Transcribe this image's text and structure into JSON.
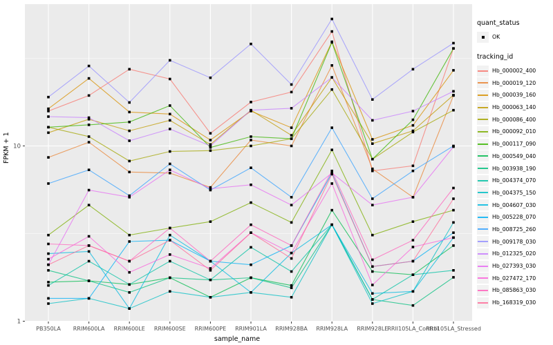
{
  "figure": {
    "background": "#ffffff",
    "panel_background": "#EBEBEB",
    "grid_color": "#FFFFFF",
    "axis_text_color": "#4D4D4D",
    "point_color": "#000000"
  },
  "legend": {
    "quant_status_title": "quant_status",
    "quant_status_items": [
      {
        "label": "OK"
      }
    ],
    "tracking_title": "tracking_id"
  },
  "chart_data": {
    "type": "line",
    "title": "",
    "xlabel": "sample_name",
    "ylabel": "FPKM + 1",
    "y_scale": "log10",
    "y_ticks": [
      {
        "value": 10,
        "label": "10"
      },
      {
        "value": 1,
        "label": "1"
      }
    ],
    "y_minor_ticks": [
      3.162,
      31.62
    ],
    "ylim": [
      1,
      63
    ],
    "grid": true,
    "legend_position": "right",
    "quant_status": "OK",
    "x_categories": [
      "PB350LA",
      "RRIM600LA",
      "RRIM600LE",
      "RRIM600SE",
      "RRIM600PE",
      "RRIM901LA",
      "RRIM928BA",
      "RRIM928LA",
      "RRIM928LE",
      "RRII105LA_Control",
      "RRII105LA_Stressed"
    ],
    "series": [
      {
        "name": "Hb_000002_400",
        "color": "#F8766D",
        "values": [
          15.8,
          19.4,
          27.4,
          24.1,
          11.8,
          17.8,
          20.3,
          45.0,
          7.2,
          7.7,
          36.0
        ]
      },
      {
        "name": "Hb_000019_120",
        "color": "#EA8331",
        "values": [
          8.6,
          10.5,
          7.1,
          7.0,
          5.8,
          10.8,
          10.0,
          28.8,
          7.4,
          5.1,
          19.4
        ]
      },
      {
        "name": "Hb_000039_160",
        "color": "#D89000",
        "values": [
          16.3,
          24.3,
          15.6,
          15.2,
          10.8,
          15.8,
          12.7,
          39.3,
          10.9,
          13.1,
          27.0
        ]
      },
      {
        "name": "Hb_000063_140",
        "color": "#C09B00",
        "values": [
          11.9,
          14.2,
          12.2,
          14.0,
          10.2,
          16.0,
          11.5,
          24.6,
          10.3,
          12.2,
          19.5
        ]
      },
      {
        "name": "Hb_000086_400",
        "color": "#A3A500",
        "values": [
          12.8,
          11.3,
          8.2,
          9.3,
          9.4,
          10.0,
          11.0,
          21.0,
          8.4,
          12.0,
          16.0
        ]
      },
      {
        "name": "Hb_000092_010",
        "color": "#7CAE00",
        "values": [
          3.1,
          4.6,
          3.1,
          3.4,
          3.7,
          4.75,
          3.66,
          9.5,
          3.1,
          3.7,
          4.3
        ]
      },
      {
        "name": "Hb_000117_090",
        "color": "#39B600",
        "values": [
          12.8,
          13.2,
          13.7,
          17.0,
          9.8,
          11.3,
          11.0,
          39.0,
          8.4,
          14.1,
          36.0
        ]
      },
      {
        "name": "Hb_000549_040",
        "color": "#00BB4E",
        "values": [
          1.67,
          1.7,
          1.62,
          1.77,
          1.37,
          1.77,
          1.6,
          4.3,
          1.92,
          1.84,
          2.7
        ]
      },
      {
        "name": "Hb_003938_190",
        "color": "#00BF7D",
        "values": [
          1.95,
          1.7,
          1.46,
          1.77,
          1.72,
          1.77,
          1.55,
          3.55,
          1.33,
          1.23,
          1.78
        ]
      },
      {
        "name": "Hb_004374_070",
        "color": "#00C1A3",
        "values": [
          1.6,
          2.2,
          1.62,
          2.2,
          1.72,
          2.64,
          1.92,
          3.55,
          1.33,
          1.84,
          1.95
        ]
      },
      {
        "name": "Hb_004375_150",
        "color": "#00BFC4",
        "values": [
          1.26,
          1.35,
          1.18,
          1.48,
          1.37,
          1.46,
          1.37,
          3.55,
          1.26,
          1.48,
          3.66
        ]
      },
      {
        "name": "Hb_004607_030",
        "color": "#00BAE0",
        "values": [
          2.43,
          2.5,
          1.18,
          3.1,
          2.2,
          1.46,
          2.45,
          3.55,
          1.44,
          1.48,
          3.0
        ]
      },
      {
        "name": "Hb_005228_070",
        "color": "#00B0F6",
        "values": [
          1.35,
          1.35,
          2.85,
          2.9,
          2.2,
          2.1,
          2.7,
          7.0,
          2.05,
          2.2,
          3.2
        ]
      },
      {
        "name": "Hb_008725_260",
        "color": "#35A2FF",
        "values": [
          6.1,
          7.3,
          5.2,
          7.9,
          5.6,
          7.5,
          5.1,
          12.7,
          5.0,
          7.2,
          10.0
        ]
      },
      {
        "name": "Hb_009178_030",
        "color": "#9590FF",
        "values": [
          19.0,
          28.6,
          17.7,
          30.8,
          24.5,
          38.2,
          22.4,
          53.0,
          18.4,
          27.4,
          38.6
        ]
      },
      {
        "name": "Hb_012325_020",
        "color": "#C77CFF",
        "values": [
          14.7,
          14.5,
          10.7,
          12.5,
          10.0,
          16.0,
          16.4,
          24.6,
          14.0,
          15.8,
          20.5
        ]
      },
      {
        "name": "Hb_027393_030",
        "color": "#E76BF3",
        "values": [
          2.1,
          5.6,
          5.1,
          7.3,
          5.7,
          6.0,
          4.6,
          7.0,
          4.6,
          5.1,
          9.9
        ]
      },
      {
        "name": "Hb_027472_170",
        "color": "#FA62DB",
        "values": [
          2.26,
          3.05,
          1.9,
          2.4,
          2.0,
          3.2,
          2.45,
          6.1,
          1.61,
          2.65,
          3.0
        ]
      },
      {
        "name": "Hb_085863_030",
        "color": "#FF62BC",
        "values": [
          2.76,
          2.7,
          2.2,
          3.4,
          2.2,
          3.55,
          2.7,
          7.2,
          2.24,
          2.9,
          5.75
        ]
      },
      {
        "name": "Hb_168319_030",
        "color": "#FF6A98",
        "values": [
          2.1,
          2.7,
          2.2,
          2.9,
          1.95,
          3.2,
          2.28,
          6.9,
          2.05,
          2.2,
          5.0
        ]
      }
    ]
  }
}
